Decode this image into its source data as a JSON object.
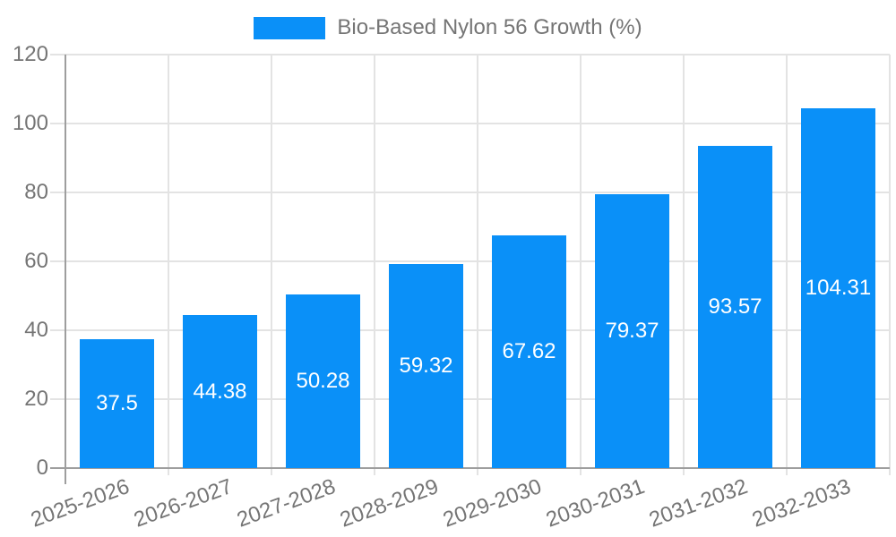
{
  "chart_data": {
    "type": "bar",
    "title": "",
    "xlabel": "",
    "ylabel": "",
    "categories": [
      "2025-2026",
      "2026-2027",
      "2027-2028",
      "2028-2029",
      "2029-2030",
      "2030-2031",
      "2031-2032",
      "2032-2033"
    ],
    "series": [
      {
        "name": "Bio-Based Nylon 56 Growth (%)",
        "color": "#0a90f8",
        "values": [
          37.5,
          44.38,
          50.28,
          59.32,
          67.62,
          79.37,
          93.57,
          104.31
        ]
      }
    ],
    "value_labels": [
      "37.5",
      "44.38",
      "50.28",
      "59.32",
      "67.62",
      "79.37",
      "93.57",
      "104.31"
    ],
    "ylim": [
      0,
      120
    ],
    "yticks": [
      0,
      20,
      40,
      60,
      80,
      100,
      120
    ],
    "grid": true,
    "legend_position": "top",
    "x_label_rotation_deg": -20
  },
  "colors": {
    "bar": "#0a90f8",
    "axis": "#9e9e9e",
    "grid": "#e3e3e3",
    "text": "#757575",
    "value_label": "#ffffff",
    "background": "#ffffff"
  }
}
